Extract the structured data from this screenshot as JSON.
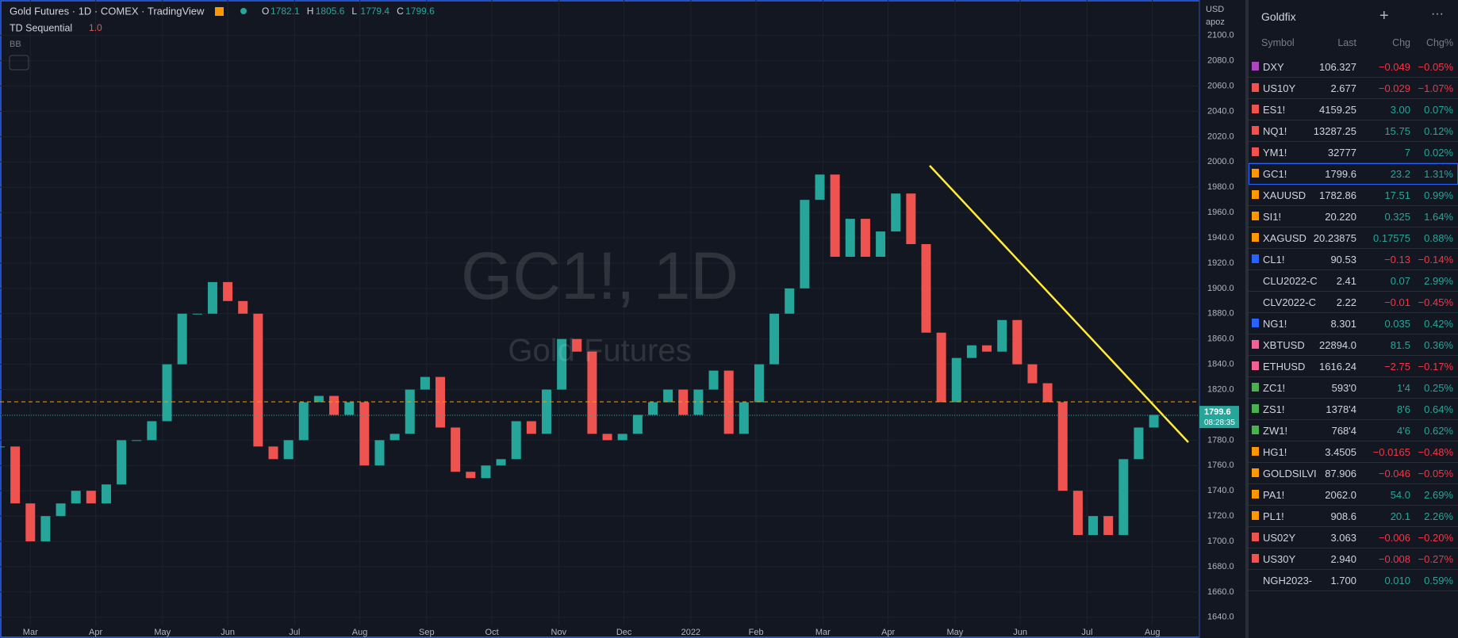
{
  "header": {
    "title": "Gold Futures · 1D · COMEX · TradingView",
    "ohlc": [
      {
        "key": "O",
        "value": 1782.1
      },
      {
        "key": "H",
        "value": 1805.6
      },
      {
        "key": "L",
        "value": 1779.4
      },
      {
        "key": "C",
        "value": 1799.6
      }
    ],
    "indicator": "TD Sequential",
    "indicator_value": "1.0",
    "bb": "BB"
  },
  "axis_header": {
    "currency": "USD",
    "unit": "apoz"
  },
  "watermark": {
    "symbol": "GC1!, 1D",
    "name": "Gold Futures"
  },
  "price_tag": {
    "value": 1799.6,
    "countdown": "08:28:35"
  },
  "chart_data": {
    "type": "candlestick",
    "up_color": "#26a69a",
    "down_color": "#ef5350",
    "x": [
      -2,
      -1,
      0,
      1,
      2,
      3,
      4,
      5,
      6,
      7,
      8,
      9,
      10,
      11,
      12,
      13,
      14,
      15,
      16,
      17,
      18,
      19,
      20,
      21,
      22,
      23,
      24,
      25,
      26,
      27,
      28,
      29,
      30,
      31,
      32,
      33,
      34,
      35,
      36,
      37,
      38,
      39,
      40,
      41,
      42,
      43,
      44,
      45,
      46,
      47,
      48,
      49,
      50,
      51,
      52,
      53,
      54,
      55,
      56,
      57,
      58,
      59,
      60,
      61,
      62,
      63,
      64,
      65,
      66,
      67,
      68,
      69,
      70,
      71,
      72,
      73,
      74
    ],
    "values": [
      1775,
      1730,
      1700,
      1720,
      1730,
      1740,
      1730,
      1745,
      1780,
      1780,
      1795,
      1840,
      1880,
      1880,
      1905,
      1890,
      1880,
      1775,
      1765,
      1780,
      1810,
      1815,
      1800,
      1810,
      1760,
      1780,
      1785,
      1820,
      1830,
      1790,
      1755,
      1750,
      1760,
      1765,
      1795,
      1785,
      1820,
      1860,
      1850,
      1785,
      1780,
      1785,
      1800,
      1810,
      1820,
      1800,
      1820,
      1835,
      1785,
      1810,
      1840,
      1880,
      1900,
      1970,
      1990,
      1925,
      1955,
      1925,
      1945,
      1975,
      1935,
      1865,
      1810,
      1845,
      1855,
      1850,
      1875,
      1840,
      1825,
      1810,
      1740,
      1705,
      1720,
      1705,
      1765,
      1790,
      1800
    ],
    "xlim": [
      -2,
      77
    ],
    "xticks": [
      {
        "value": 0,
        "label": "Mar"
      },
      {
        "value": 4.3,
        "label": "Apr"
      },
      {
        "value": 8.7,
        "label": "May"
      },
      {
        "value": 13,
        "label": "Jun"
      },
      {
        "value": 17.4,
        "label": "Jul"
      },
      {
        "value": 21.7,
        "label": "Aug"
      },
      {
        "value": 26.1,
        "label": "Sep"
      },
      {
        "value": 30.4,
        "label": "Oct"
      },
      {
        "value": 34.8,
        "label": "Nov"
      },
      {
        "value": 39.1,
        "label": "Dec"
      },
      {
        "value": 43.5,
        "label": "2022"
      },
      {
        "value": 47.8,
        "label": "Feb"
      },
      {
        "value": 52.2,
        "label": "Mar"
      },
      {
        "value": 56.5,
        "label": "Apr"
      },
      {
        "value": 60.9,
        "label": "May"
      },
      {
        "value": 65.2,
        "label": "Jun"
      },
      {
        "value": 69.6,
        "label": "Jul"
      },
      {
        "value": 73.9,
        "label": "Aug"
      }
    ],
    "ylim": [
      1633,
      2128
    ],
    "yticks": [
      {
        "value": 1640,
        "label": "1640.0"
      },
      {
        "value": 1660,
        "label": "1660.0"
      },
      {
        "value": 1680,
        "label": "1680.0"
      },
      {
        "value": 1700,
        "label": "1700.0"
      },
      {
        "value": 1720,
        "label": "1720.0"
      },
      {
        "value": 1740,
        "label": "1740.0"
      },
      {
        "value": 1760,
        "label": "1760.0"
      },
      {
        "value": 1780,
        "label": "1780.0"
      },
      {
        "value": 1800,
        "label": "1800.0"
      },
      {
        "value": 1820,
        "label": "1820.0"
      },
      {
        "value": 1840,
        "label": "1840.0"
      },
      {
        "value": 1860,
        "label": "1860.0"
      },
      {
        "value": 1880,
        "label": "1880.0"
      },
      {
        "value": 1900,
        "label": "1900.0"
      },
      {
        "value": 1920,
        "label": "1920.0"
      },
      {
        "value": 1940,
        "label": "1940.0"
      },
      {
        "value": 1960,
        "label": "1960.0"
      },
      {
        "value": 1980,
        "label": "1980.0"
      },
      {
        "value": 2000,
        "label": "2000.0"
      },
      {
        "value": 2020,
        "label": "2020.0"
      },
      {
        "value": 2040,
        "label": "2040.0"
      },
      {
        "value": 2060,
        "label": "2060.0"
      },
      {
        "value": 2080,
        "label": "2080.0"
      },
      {
        "value": 2100,
        "label": "2100.0"
      }
    ],
    "grid": true
  },
  "watchlist": {
    "title": "Goldfix",
    "columns": [
      "Symbol",
      "Last",
      "Chg",
      "Chg%"
    ],
    "selected": 5,
    "rows": [
      {
        "flag": "#ab47bc",
        "symbol": "DXY",
        "last": "106.327",
        "chg": "−0.049",
        "chgp": "−0.05%"
      },
      {
        "flag": "#ef5350",
        "symbol": "US10Y",
        "last": "2.677",
        "chg": "−0.029",
        "chgp": "−1.07%"
      },
      {
        "flag": "#ef5350",
        "symbol": "ES1!",
        "last": "4159.25",
        "chg": "3.00",
        "chgp": "0.07%"
      },
      {
        "flag": "#ef5350",
        "symbol": "NQ1!",
        "last": "13287.25",
        "chg": "15.75",
        "chgp": "0.12%"
      },
      {
        "flag": "#ef5350",
        "symbol": "YM1!",
        "last": "32777",
        "chg": "7",
        "chgp": "0.02%"
      },
      {
        "flag": "#ff9800",
        "symbol": "GC1!",
        "last": "1799.6",
        "chg": "23.2",
        "chgp": "1.31%"
      },
      {
        "flag": "#ff9800",
        "symbol": "XAUUSD",
        "last": "1782.86",
        "chg": "17.51",
        "chgp": "0.99%"
      },
      {
        "flag": "#ff9800",
        "symbol": "SI1!",
        "last": "20.220",
        "chg": "0.325",
        "chgp": "1.64%"
      },
      {
        "flag": "#ff9800",
        "symbol": "XAGUSD",
        "last": "20.23875",
        "chg": "0.17575",
        "chgp": "0.88%"
      },
      {
        "flag": "#2962ff",
        "symbol": "CL1!",
        "last": "90.53",
        "chg": "−0.13",
        "chgp": "−0.14%"
      },
      {
        "flag": null,
        "symbol": "CLU2022-C",
        "last": "2.41",
        "chg": "0.07",
        "chgp": "2.99%"
      },
      {
        "flag": null,
        "symbol": "CLV2022-C",
        "last": "2.22",
        "chg": "−0.01",
        "chgp": "−0.45%"
      },
      {
        "flag": "#2962ff",
        "symbol": "NG1!",
        "last": "8.301",
        "chg": "0.035",
        "chgp": "0.42%"
      },
      {
        "flag": "#f06292",
        "symbol": "XBTUSD",
        "last": "22894.0",
        "chg": "81.5",
        "chgp": "0.36%"
      },
      {
        "flag": "#f06292",
        "symbol": "ETHUSD",
        "last": "1616.24",
        "chg": "−2.75",
        "chgp": "−0.17%"
      },
      {
        "flag": "#4caf50",
        "symbol": "ZC1!",
        "last": "593'0",
        "chg": "1'4",
        "chgp": "0.25%"
      },
      {
        "flag": "#4caf50",
        "symbol": "ZS1!",
        "last": "1378'4",
        "chg": "8'6",
        "chgp": "0.64%"
      },
      {
        "flag": "#4caf50",
        "symbol": "ZW1!",
        "last": "768'4",
        "chg": "4'6",
        "chgp": "0.62%"
      },
      {
        "flag": "#ff9800",
        "symbol": "HG1!",
        "last": "3.4505",
        "chg": "−0.0165",
        "chgp": "−0.48%"
      },
      {
        "flag": "#ff9800",
        "symbol": "GOLDSILVI",
        "last": "87.906",
        "chg": "−0.046",
        "chgp": "−0.05%"
      },
      {
        "flag": "#ff9800",
        "symbol": "PA1!",
        "last": "2062.0",
        "chg": "54.0",
        "chgp": "2.69%"
      },
      {
        "flag": "#ff9800",
        "symbol": "PL1!",
        "last": "908.6",
        "chg": "20.1",
        "chgp": "2.26%"
      },
      {
        "flag": "#ef5350",
        "symbol": "US02Y",
        "last": "3.063",
        "chg": "−0.006",
        "chgp": "−0.20%"
      },
      {
        "flag": "#ef5350",
        "symbol": "US30Y",
        "last": "2.940",
        "chg": "−0.008",
        "chgp": "−0.27%"
      },
      {
        "flag": null,
        "symbol": "NGH2023-",
        "last": "1.700",
        "chg": "0.010",
        "chgp": "0.59%"
      }
    ]
  }
}
